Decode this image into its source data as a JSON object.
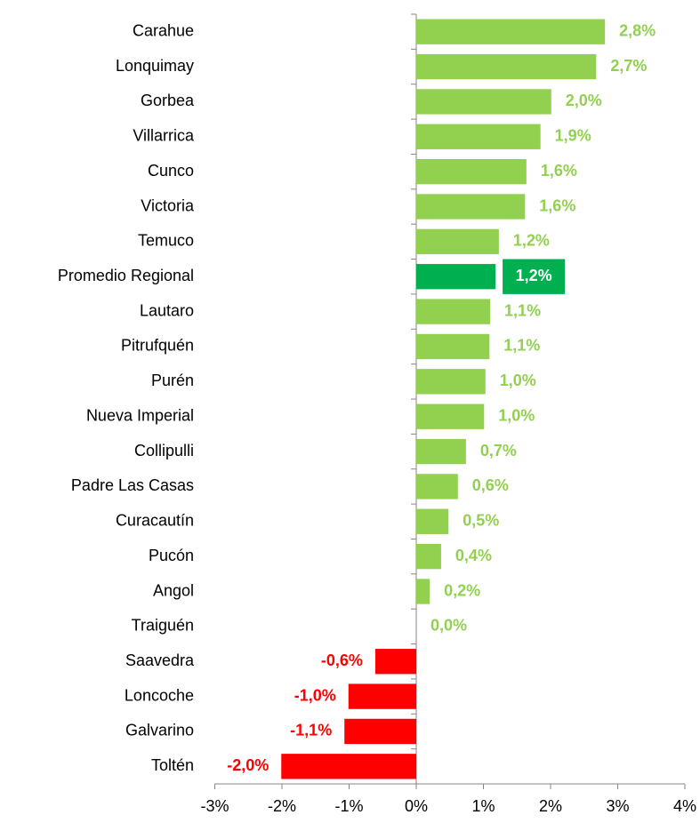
{
  "chart_data": {
    "type": "bar",
    "orientation": "horizontal",
    "categories": [
      "Carahue",
      "Lonquimay",
      "Gorbea",
      "Villarrica",
      "Cunco",
      "Victoria",
      "Temuco",
      "Promedio Regional",
      "Lautaro",
      "Pitrufquén",
      "Purén",
      "Nueva Imperial",
      "Collipulli",
      "Padre Las Casas",
      "Curacautín",
      "Pucón",
      "Angol",
      "Traiguén",
      "Saavedra",
      "Loncoche",
      "Galvarino",
      "Toltén"
    ],
    "values": [
      2.81,
      2.68,
      2.01,
      1.85,
      1.64,
      1.62,
      1.23,
      1.18,
      1.1,
      1.09,
      1.03,
      1.01,
      0.74,
      0.62,
      0.48,
      0.37,
      0.2,
      0,
      -0.61,
      -1.01,
      -1.07,
      -2.01
    ],
    "value_labels": [
      "2,8%",
      "2,7%",
      "2,0%",
      "1,9%",
      "1,6%",
      "1,6%",
      "1,2%",
      "1,2%",
      "1,1%",
      "1,1%",
      "1,0%",
      "1,0%",
      "0,7%",
      "0,6%",
      "0,5%",
      "0,4%",
      "0,2%",
      "0,0%",
      "-0,6%",
      "-1,0%",
      "-1,1%",
      "-2,0%"
    ],
    "colors": [
      "#92d050",
      "#92d050",
      "#92d050",
      "#92d050",
      "#92d050",
      "#92d050",
      "#92d050",
      "#00b050",
      "#92d050",
      "#92d050",
      "#92d050",
      "#92d050",
      "#92d050",
      "#92d050",
      "#92d050",
      "#92d050",
      "#92d050",
      "#92d050",
      "#ff0000",
      "#ff0000",
      "#ff0000",
      "#ff0000"
    ],
    "highlight_color": "#00b050",
    "xlim": [
      -3,
      4
    ],
    "xticks": [
      {
        "value": -3,
        "label": "-3%"
      },
      {
        "value": -2,
        "label": "-2%"
      },
      {
        "value": -1,
        "label": "-1%"
      },
      {
        "value": 0,
        "label": "0%"
      },
      {
        "value": 1,
        "label": "1%"
      },
      {
        "value": 2,
        "label": "2%"
      },
      {
        "value": 3,
        "label": "3%"
      },
      {
        "value": 4,
        "label": "4%"
      }
    ],
    "grid": false
  }
}
